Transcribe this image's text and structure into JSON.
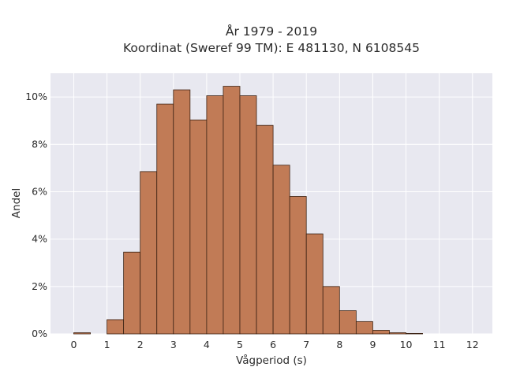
{
  "chart_data": {
    "type": "bar",
    "title_lines": [
      "År 1979 - 2019",
      "Koordinat (Sweref 99 TM): E 481130, N 6108545"
    ],
    "xlabel": "Vågperiod (s)",
    "ylabel": "Andel",
    "xlim": [
      -0.7,
      12.6
    ],
    "ylim": [
      0,
      11
    ],
    "x_ticks": [
      0,
      1,
      2,
      3,
      4,
      5,
      6,
      7,
      8,
      9,
      10,
      11,
      12
    ],
    "x_tick_labels": [
      "0",
      "1",
      "2",
      "3",
      "4",
      "5",
      "6",
      "7",
      "8",
      "9",
      "10",
      "11",
      "12"
    ],
    "y_ticks": [
      0,
      2,
      4,
      6,
      8,
      10
    ],
    "y_tick_labels": [
      "0%",
      "2%",
      "4%",
      "6%",
      "8%",
      "10%"
    ],
    "bin_width": 0.5,
    "bin_starts": [
      0,
      0.5,
      1,
      1.5,
      2,
      2.5,
      3,
      3.5,
      4,
      4.5,
      5,
      5.5,
      6,
      6.5,
      7,
      7.5,
      8,
      8.5,
      9,
      9.5,
      10,
      10.5,
      11,
      11.5
    ],
    "values": [
      0.05,
      0,
      0.6,
      3.45,
      6.85,
      9.7,
      10.3,
      9.03,
      10.05,
      10.45,
      10.05,
      8.8,
      7.12,
      5.8,
      4.22,
      2.0,
      0.98,
      0.52,
      0.15,
      0.05,
      0.02,
      0,
      0,
      0
    ],
    "bar_color": "#c17b56",
    "edge_color": "#3d2314",
    "plot_background": "#e8e8f0",
    "grid": true
  }
}
